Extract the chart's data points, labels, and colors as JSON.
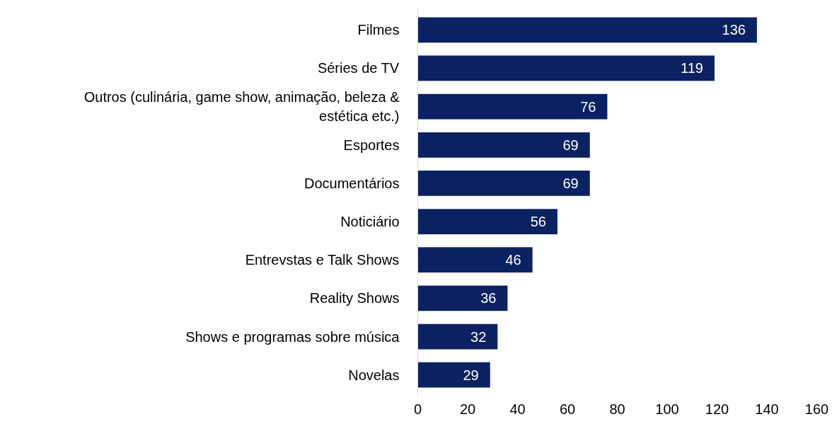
{
  "chart_data": {
    "type": "bar",
    "orientation": "horizontal",
    "categories": [
      "Filmes",
      "Séries de TV",
      "Outros (culinária, game show, animação, beleza & estética etc.)",
      "Esportes",
      "Documentários",
      "Noticiário",
      "Entrevstas e Talk Shows",
      "Reality Shows",
      "Shows e programas sobre música",
      "Novelas"
    ],
    "values": [
      136,
      119,
      76,
      69,
      69,
      56,
      46,
      36,
      32,
      29
    ],
    "color": "#0b2161",
    "xlim": [
      0,
      160
    ],
    "xticks": [
      0,
      20,
      40,
      60,
      80,
      100,
      120,
      140,
      160
    ],
    "grid": false,
    "data_labels": true
  }
}
